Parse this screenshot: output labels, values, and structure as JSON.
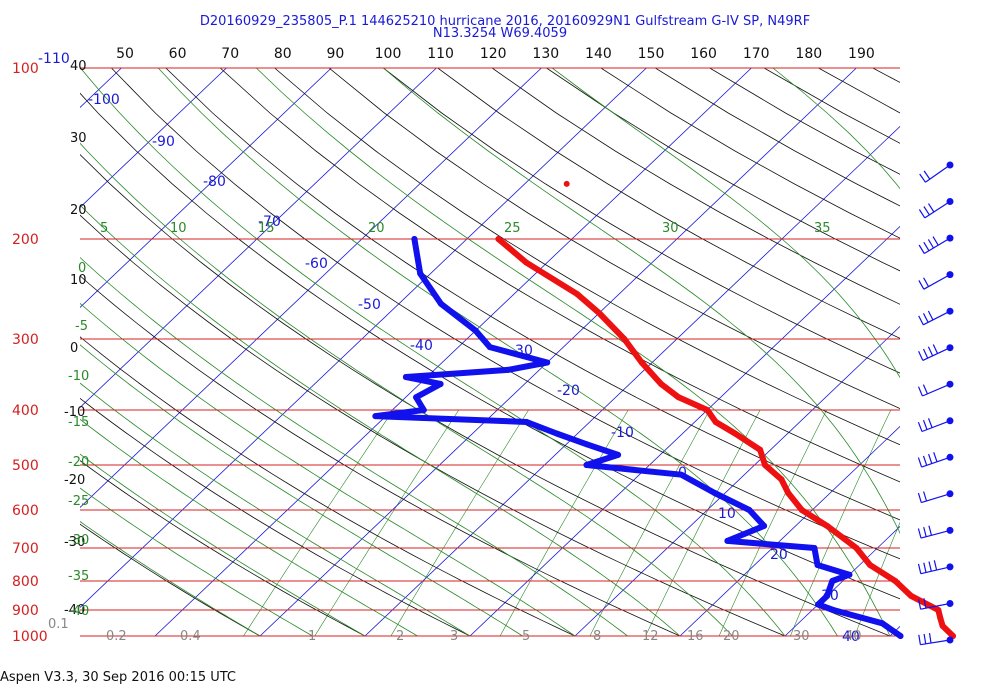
{
  "chart_data": {
    "type": "skew-t",
    "title": "D20160929_235805_P.1 144625210 hurricane 2016, 20160929N1 Gulfstream G-IV SP, N49RF",
    "subtitle": "N13.3254 W69.4059",
    "footer": "Aspen V3.3, 30 Sep 2016  00:15 UTC",
    "pressure_labels": [
      "100",
      "200",
      "300",
      "400",
      "500",
      "600",
      "700",
      "800",
      "900",
      "1000"
    ],
    "pressure_label_extra": "-110",
    "top_axis_ticks": [
      "50",
      "60",
      "70",
      "80",
      "90",
      "100",
      "110",
      "120",
      "130",
      "140",
      "150",
      "160",
      "170",
      "180",
      "190"
    ],
    "left_axis_ticks": [
      {
        "v": 40,
        "t": "40"
      },
      {
        "v": 30,
        "t": "30"
      },
      {
        "v": 20,
        "t": "20"
      },
      {
        "v": 10,
        "t": "10"
      },
      {
        "v": 0,
        "t": "0"
      },
      {
        "v": -10,
        "t": "-10"
      },
      {
        "v": -20,
        "t": "-20"
      },
      {
        "v": -30,
        "t": "-30"
      },
      {
        "v": -40,
        "t": "-40"
      }
    ],
    "isotherm_labels": [
      "-110",
      "-100",
      "-90",
      "-80",
      "-70",
      "-60",
      "-50",
      "-40",
      "-30",
      "-20",
      "-10",
      "0",
      "10",
      "20",
      "30",
      "40"
    ],
    "dry_adiabat_labels": [
      "5",
      "10",
      "15",
      "20",
      "25",
      "30",
      "35"
    ],
    "moist_adiabat_labels": [
      "0",
      "-5",
      "-10",
      "-15",
      "-20",
      "-25",
      "-30",
      "-35",
      "-40"
    ],
    "mixing_ratio_labels": [
      "0.1",
      "0.2",
      "0.4",
      "1",
      "2",
      "3",
      "5",
      "8",
      "12",
      "16",
      "20",
      "30",
      "40"
    ],
    "temperature": [
      [
        200,
        -57
      ],
      [
        220,
        -52
      ],
      [
        250,
        -44
      ],
      [
        270,
        -40
      ],
      [
        300,
        -35
      ],
      [
        330,
        -31
      ],
      [
        360,
        -27
      ],
      [
        380,
        -24
      ],
      [
        400,
        -20
      ],
      [
        420,
        -18
      ],
      [
        440,
        -15
      ],
      [
        470,
        -11
      ],
      [
        500,
        -9
      ],
      [
        530,
        -6
      ],
      [
        560,
        -4
      ],
      [
        600,
        -1
      ],
      [
        640,
        3
      ],
      [
        700,
        8
      ],
      [
        750,
        11
      ],
      [
        800,
        15
      ],
      [
        850,
        18
      ],
      [
        900,
        22
      ],
      [
        930,
        23
      ],
      [
        960,
        24
      ],
      [
        1000,
        26
      ]
    ],
    "dewpoint": [
      [
        200,
        -65
      ],
      [
        230,
        -61
      ],
      [
        260,
        -56
      ],
      [
        290,
        -50
      ],
      [
        310,
        -47
      ],
      [
        330,
        -40
      ],
      [
        340,
        -43
      ],
      [
        350,
        -52
      ],
      [
        360,
        -48
      ],
      [
        380,
        -49
      ],
      [
        400,
        -47
      ],
      [
        410,
        -51
      ],
      [
        420,
        -36
      ],
      [
        440,
        -32
      ],
      [
        460,
        -28
      ],
      [
        480,
        -24
      ],
      [
        500,
        -26
      ],
      [
        520,
        -16
      ],
      [
        560,
        -11
      ],
      [
        600,
        -6
      ],
      [
        640,
        -3
      ],
      [
        680,
        -5
      ],
      [
        700,
        4
      ],
      [
        750,
        6
      ],
      [
        780,
        10
      ],
      [
        800,
        9
      ],
      [
        850,
        10
      ],
      [
        880,
        10
      ],
      [
        900,
        12
      ],
      [
        950,
        18
      ],
      [
        1000,
        21
      ]
    ],
    "outlier_point": [
      160,
      -56
    ],
    "wind_barbs_count": 14,
    "colors": {
      "isobar": "#d42020",
      "isotherm": "#1a1ad6",
      "dry_adiabat": "#111111",
      "moist_adiabat": "#2a8a2a",
      "temperature_trace": "#ee1111",
      "dewpoint_trace": "#1111ee",
      "mixing_ratio_label": "#888888"
    }
  }
}
